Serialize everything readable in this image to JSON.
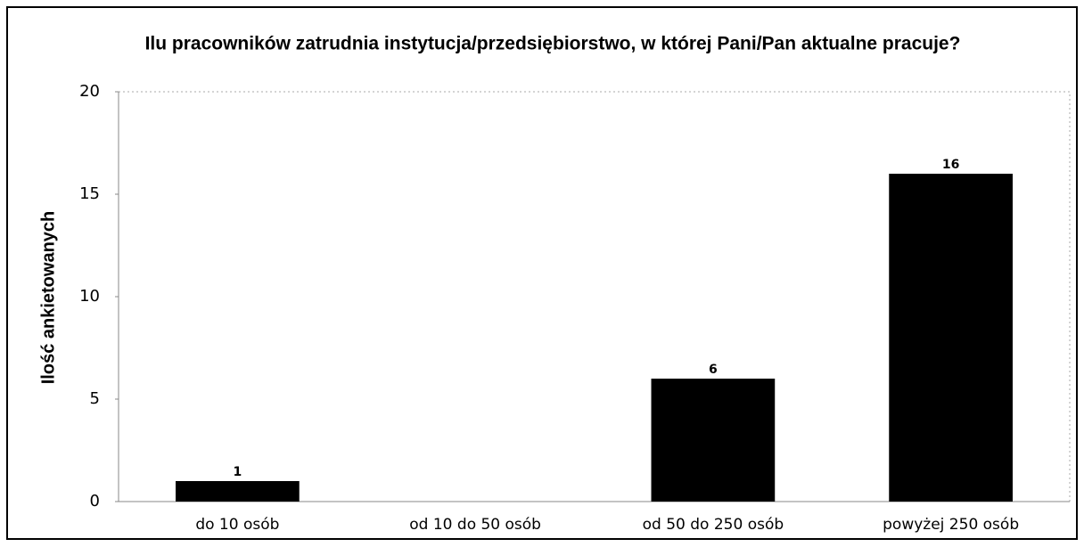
{
  "chart_data": {
    "type": "bar",
    "title": "Ilu pracowników zatrudnia instytucja/przedsiębiorstwo, w której Pani/Pan aktualne pracuje?",
    "y_label": "Ilość ankietowanych",
    "categories": [
      "do 10 osób",
      "od 10 do 50 osób",
      "od 50 do 250 osób",
      "powyżej 250 osób"
    ],
    "values": [
      1,
      0,
      6,
      16
    ],
    "value_labels": [
      "1",
      null,
      "6",
      "16"
    ],
    "color": "#000000",
    "ylim": [
      0,
      20
    ],
    "yticks": [
      0,
      5,
      10,
      15,
      20
    ],
    "grid": false
  }
}
